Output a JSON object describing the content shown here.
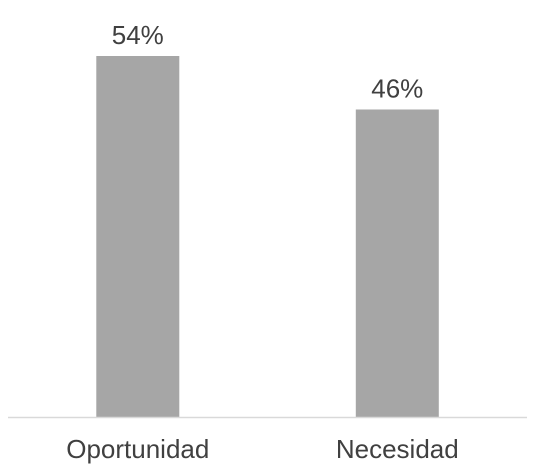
{
  "chart_data": {
    "type": "bar",
    "categories": [
      "Oportunidad",
      "Necesidad"
    ],
    "values": [
      54,
      46
    ],
    "value_labels": [
      "54%",
      "46%"
    ],
    "title": "",
    "xlabel": "",
    "ylabel": "",
    "ylim": [
      0,
      60
    ],
    "grid": false,
    "legend": "none",
    "colors": {
      "bar": "#a6a6a6",
      "axis": "#d9d9d9",
      "text": "#404040"
    }
  }
}
